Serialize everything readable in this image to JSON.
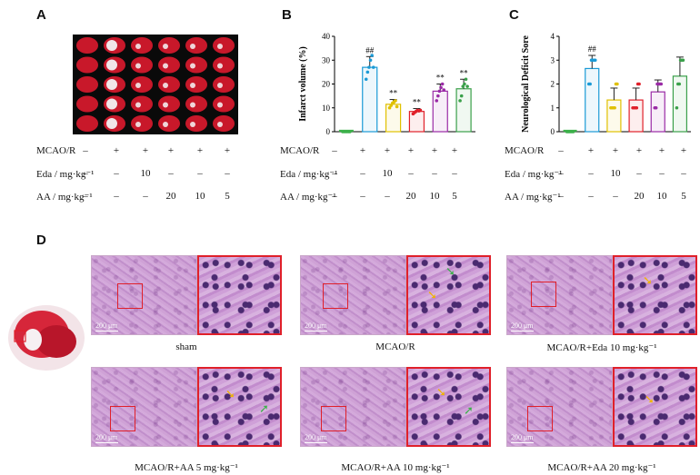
{
  "panels": {
    "A": "A",
    "B": "B",
    "C": "C",
    "D": "D"
  },
  "table": {
    "row_labels": [
      "MCAO/R",
      "Eda / mg·kg⁻¹",
      "AA / mg·kg⁻¹"
    ],
    "rows": [
      [
        "–",
        "+",
        "+",
        "+",
        "+",
        "+"
      ],
      [
        "–",
        "–",
        "10",
        "–",
        "–",
        "–"
      ],
      [
        "–",
        "–",
        "–",
        "20",
        "10",
        "5"
      ]
    ]
  },
  "chart_data": [
    {
      "type": "bar",
      "panel": "B",
      "ylabel": "Infarct volume (%)",
      "ylim": [
        0,
        40
      ],
      "yticks": [
        "0",
        "10",
        "20",
        "30",
        "40"
      ],
      "categories": [
        "sham",
        "MCAO/R",
        "MCAO/R+Eda 10",
        "MCAO/R+AA 20",
        "MCAO/R+AA 10",
        "MCAO/R+AA 5"
      ],
      "values": [
        0,
        27,
        11.5,
        8.5,
        17,
        18
      ],
      "errors": [
        0,
        4.5,
        2,
        1.2,
        3,
        4
      ],
      "annotations": [
        "",
        "##",
        "**",
        "**",
        "**",
        "**"
      ],
      "colors": [
        "#3cb04a",
        "#1a9ad6",
        "#e0c000",
        "#e0202a",
        "#9a2aa6",
        "#3aa04a"
      ],
      "points": [
        [
          0,
          0,
          0,
          0,
          0,
          0
        ],
        [
          22,
          25,
          27,
          30,
          32,
          27
        ],
        [
          10,
          11,
          12,
          12.5,
          13,
          10.5
        ],
        [
          7.5,
          8,
          8.5,
          9,
          8.7,
          9
        ],
        [
          13,
          15,
          17,
          18.5,
          20,
          17.5
        ],
        [
          13,
          15,
          19,
          20,
          22,
          19
        ]
      ]
    },
    {
      "type": "bar",
      "panel": "C",
      "ylabel": "Neurological Deficit Sore",
      "ylim": [
        0,
        4
      ],
      "yticks": [
        "0",
        "1",
        "2",
        "3",
        "4"
      ],
      "categories": [
        "sham",
        "MCAO/R",
        "MCAO/R+Eda 10",
        "MCAO/R+AA 20",
        "MCAO/R+AA 10",
        "MCAO/R+AA 5"
      ],
      "values": [
        0,
        2.65,
        1.33,
        1.33,
        1.67,
        2.33
      ],
      "errors": [
        0,
        0.55,
        0.5,
        0.5,
        0.5,
        0.8
      ],
      "annotations": [
        "",
        "##",
        "",
        "",
        "",
        ""
      ],
      "colors": [
        "#3cb04a",
        "#1a9ad6",
        "#e0c000",
        "#e0202a",
        "#9a2aa6",
        "#3aa04a"
      ],
      "points": [
        [
          0,
          0,
          0,
          0,
          0,
          0
        ],
        [
          2,
          2,
          3,
          3,
          3,
          3
        ],
        [
          1,
          1,
          1,
          1,
          2,
          2
        ],
        [
          1,
          1,
          1,
          1,
          2,
          2
        ],
        [
          1,
          1,
          2,
          2,
          2,
          2
        ],
        [
          1,
          2,
          2,
          3,
          3,
          3
        ]
      ]
    }
  ],
  "micrographs": [
    {
      "caption": "sham",
      "scale": "200 μm"
    },
    {
      "caption": "MCAO/R",
      "scale": "200 μm"
    },
    {
      "caption": "MCAO/R+Eda 10 mg·kg⁻¹",
      "scale": "200 μm"
    },
    {
      "caption": "MCAO/R+AA 5 mg·kg⁻¹",
      "scale": "200 μm"
    },
    {
      "caption": "MCAO/R+AA 10 mg·kg⁻¹",
      "scale": "200 μm"
    },
    {
      "caption": "MCAO/R+AA 20 mg·kg⁻¹",
      "scale": "200 μm"
    }
  ]
}
